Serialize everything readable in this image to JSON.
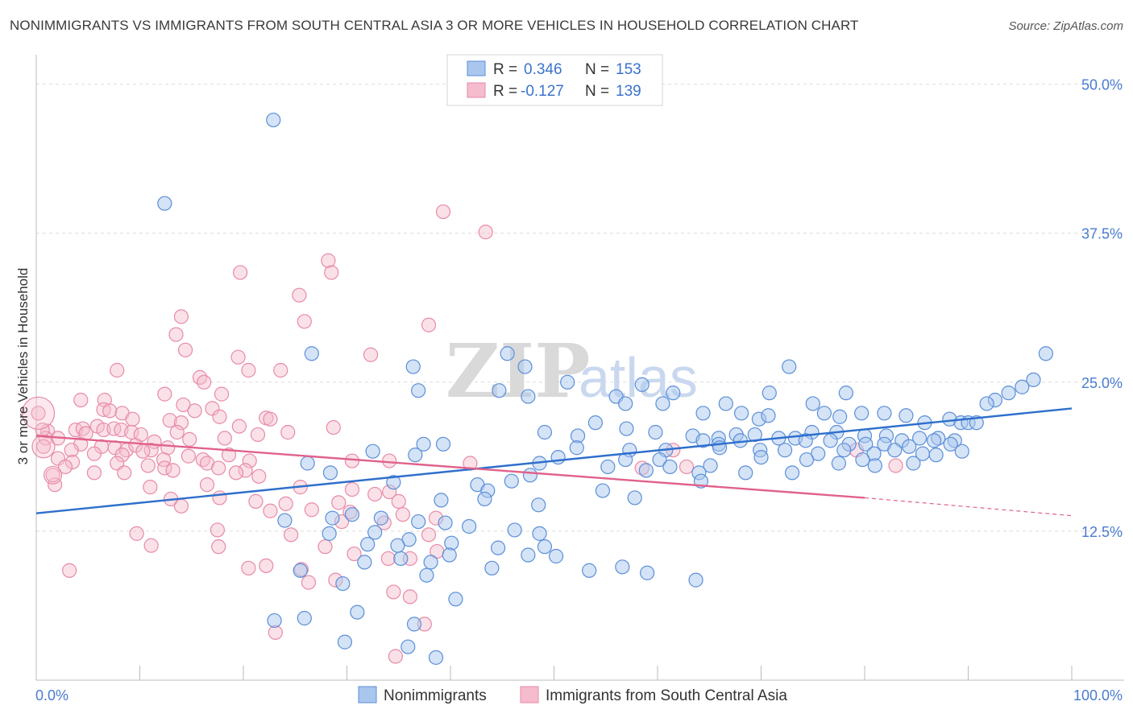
{
  "title": "NONIMMIGRANTS VS IMMIGRANTS FROM SOUTH CENTRAL ASIA 3 OR MORE VEHICLES IN HOUSEHOLD CORRELATION CHART",
  "source": "Source: ZipAtlas.com",
  "watermark": {
    "zip": "ZIP",
    "atlas": "atlas"
  },
  "legend_top": {
    "row1": {
      "r_label": "R =",
      "r_value": "0.346",
      "n_label": "N =",
      "n_value": "153"
    },
    "row2": {
      "r_label": "R =",
      "r_value": "-0.127",
      "n_label": "N =",
      "n_value": "139"
    }
  },
  "legend_bottom": {
    "s1": "Nonimmigrants",
    "s2": "Immigrants from South Central Asia"
  },
  "colors": {
    "blue": "#5b8fd8",
    "blue_fill": "#a9c7ee",
    "blue_line": "#2e6fcc",
    "pink": "#e88aa8",
    "pink_fill": "#f5bccd",
    "pink_line": "#e0628c",
    "tick_text": "#4a7bd0",
    "grid": "#dcdcdc"
  },
  "chart_data": {
    "type": "scatter",
    "title": "NONIMMIGRANTS VS IMMIGRANTS FROM SOUTH CENTRAL ASIA 3 OR MORE VEHICLES IN HOUSEHOLD CORRELATION CHART",
    "xlabel": "",
    "ylabel": "3 or more Vehicles in Household",
    "xlim": [
      0,
      100
    ],
    "ylim": [
      0,
      52
    ],
    "x_tick_labels": [
      "0.0%",
      "100.0%"
    ],
    "y_ticks": [
      12.5,
      25.0,
      37.5,
      50.0
    ],
    "y_tick_labels": [
      "12.5%",
      "25.0%",
      "37.5%",
      "50.0%"
    ],
    "grid": true,
    "legend_position": "top-center",
    "series": [
      {
        "name": "Nonimmigrants",
        "color": "#5b8fd8",
        "r": 0.346,
        "n": 153,
        "trend": [
          [
            0,
            14.0
          ],
          [
            100,
            22.8
          ]
        ],
        "points": [
          [
            22.9,
            47
          ],
          [
            12.4,
            40
          ],
          [
            26.6,
            27.4
          ],
          [
            45.5,
            27.4
          ],
          [
            36.4,
            26.3
          ],
          [
            47.2,
            26.3
          ],
          [
            72.7,
            26.3
          ],
          [
            36.9,
            24.3
          ],
          [
            44.7,
            24.3
          ],
          [
            47.5,
            23.8
          ],
          [
            51.3,
            25.0
          ],
          [
            58.5,
            24.8
          ],
          [
            61.5,
            24.1
          ],
          [
            70.8,
            24.1
          ],
          [
            78.2,
            24.1
          ],
          [
            97.5,
            27.4
          ],
          [
            96.3,
            25.2
          ],
          [
            95.2,
            24.6
          ],
          [
            93.9,
            24.1
          ],
          [
            92.6,
            23.5
          ],
          [
            91.8,
            23.2
          ],
          [
            56.0,
            23.8
          ],
          [
            56.9,
            23.2
          ],
          [
            60.5,
            23.2
          ],
          [
            64.4,
            22.4
          ],
          [
            66.6,
            23.2
          ],
          [
            68.1,
            22.4
          ],
          [
            69.8,
            21.9
          ],
          [
            70.7,
            22.2
          ],
          [
            75.0,
            23.2
          ],
          [
            76.1,
            22.4
          ],
          [
            77.6,
            22.1
          ],
          [
            79.7,
            22.4
          ],
          [
            81.9,
            22.4
          ],
          [
            84.0,
            22.2
          ],
          [
            85.8,
            21.6
          ],
          [
            88.2,
            21.9
          ],
          [
            89.3,
            21.6
          ],
          [
            90.0,
            21.6
          ],
          [
            90.8,
            21.6
          ],
          [
            54.0,
            21.6
          ],
          [
            57.0,
            21.1
          ],
          [
            59.8,
            20.8
          ],
          [
            63.4,
            20.5
          ],
          [
            65.9,
            20.3
          ],
          [
            67.6,
            20.6
          ],
          [
            69.4,
            20.6
          ],
          [
            73.3,
            20.3
          ],
          [
            74.9,
            20.8
          ],
          [
            77.3,
            20.8
          ],
          [
            80.0,
            20.5
          ],
          [
            82.1,
            20.5
          ],
          [
            85.3,
            20.3
          ],
          [
            87.1,
            20.3
          ],
          [
            88.7,
            20.1
          ],
          [
            49.1,
            20.8
          ],
          [
            52.3,
            20.5
          ],
          [
            37.4,
            19.8
          ],
          [
            39.3,
            19.8
          ],
          [
            64.4,
            20.1
          ],
          [
            65.9,
            19.8
          ],
          [
            68.0,
            20.1
          ],
          [
            71.7,
            20.3
          ],
          [
            74.3,
            20.1
          ],
          [
            76.7,
            20.1
          ],
          [
            78.5,
            19.8
          ],
          [
            80.1,
            19.8
          ],
          [
            81.9,
            19.8
          ],
          [
            83.6,
            20.1
          ],
          [
            86.7,
            20.1
          ],
          [
            88.3,
            19.8
          ],
          [
            52.2,
            19.5
          ],
          [
            57.3,
            19.3
          ],
          [
            60.8,
            19.3
          ],
          [
            66.0,
            19.5
          ],
          [
            69.9,
            19.3
          ],
          [
            72.3,
            19.3
          ],
          [
            75.5,
            19.0
          ],
          [
            78.0,
            19.3
          ],
          [
            80.9,
            19.0
          ],
          [
            82.9,
            19.3
          ],
          [
            84.3,
            19.6
          ],
          [
            85.6,
            19.0
          ],
          [
            86.9,
            18.9
          ],
          [
            89.4,
            19.2
          ],
          [
            32.5,
            19.2
          ],
          [
            36.6,
            18.9
          ],
          [
            50.4,
            18.7
          ],
          [
            56.9,
            18.5
          ],
          [
            60.2,
            18.5
          ],
          [
            65.1,
            18.0
          ],
          [
            70.0,
            18.7
          ],
          [
            74.4,
            18.5
          ],
          [
            77.5,
            18.2
          ],
          [
            79.8,
            18.5
          ],
          [
            81.0,
            18.0
          ],
          [
            84.7,
            18.2
          ],
          [
            48.6,
            18.2
          ],
          [
            55.2,
            17.9
          ],
          [
            58.9,
            17.6
          ],
          [
            61.2,
            17.9
          ],
          [
            64.0,
            17.4
          ],
          [
            68.5,
            17.4
          ],
          [
            73.0,
            17.4
          ],
          [
            26.2,
            18.2
          ],
          [
            28.4,
            17.4
          ],
          [
            47.7,
            17.2
          ],
          [
            45.9,
            16.7
          ],
          [
            34.5,
            16.6
          ],
          [
            64.2,
            16.7
          ],
          [
            42.6,
            16.4
          ],
          [
            43.6,
            15.9
          ],
          [
            54.7,
            15.9
          ],
          [
            43.3,
            15.2
          ],
          [
            48.5,
            14.7
          ],
          [
            57.8,
            15.3
          ],
          [
            39.1,
            15.1
          ],
          [
            30.5,
            13.9
          ],
          [
            33.3,
            13.6
          ],
          [
            36.9,
            13.3
          ],
          [
            39.5,
            13.2
          ],
          [
            41.8,
            12.9
          ],
          [
            46.2,
            12.6
          ],
          [
            48.6,
            12.3
          ],
          [
            24.0,
            13.4
          ],
          [
            28.6,
            13.6
          ],
          [
            32.7,
            12.4
          ],
          [
            36.0,
            11.8
          ],
          [
            40.1,
            11.5
          ],
          [
            44.6,
            11.1
          ],
          [
            49.1,
            11.2
          ],
          [
            35.2,
            10.2
          ],
          [
            38.1,
            9.9
          ],
          [
            39.9,
            10.5
          ],
          [
            44.0,
            9.4
          ],
          [
            50.2,
            10.4
          ],
          [
            53.4,
            9.2
          ],
          [
            56.6,
            9.5
          ],
          [
            59.0,
            9.0
          ],
          [
            31.7,
            9.9
          ],
          [
            34.9,
            11.3
          ],
          [
            28.3,
            12.3
          ],
          [
            32.0,
            11.4
          ],
          [
            47.5,
            10.5
          ],
          [
            37.7,
            8.8
          ],
          [
            25.5,
            9.2
          ],
          [
            29.6,
            8.1
          ],
          [
            63.7,
            8.4
          ],
          [
            40.5,
            6.8
          ],
          [
            23.0,
            5.0
          ],
          [
            31.0,
            5.7
          ],
          [
            25.9,
            5.2
          ],
          [
            35.9,
            2.8
          ],
          [
            36.5,
            4.7
          ],
          [
            38.6,
            1.9
          ],
          [
            29.8,
            3.2
          ]
        ]
      },
      {
        "name": "Immigrants from South Central Asia",
        "color": "#e88aa8",
        "r": -0.127,
        "n": 139,
        "trend": [
          [
            0,
            20.5
          ],
          [
            80,
            15.3
          ]
        ],
        "trend_dashed": [
          [
            80,
            15.3
          ],
          [
            100,
            13.8
          ]
        ],
        "points": [
          [
            39.3,
            39.3
          ],
          [
            43.4,
            37.6
          ],
          [
            28.2,
            35.2
          ],
          [
            28.5,
            34.2
          ],
          [
            19.7,
            34.2
          ],
          [
            25.4,
            32.3
          ],
          [
            14.0,
            30.5
          ],
          [
            25.9,
            30.1
          ],
          [
            37.9,
            29.8
          ],
          [
            13.5,
            29.0
          ],
          [
            14.4,
            27.7
          ],
          [
            19.5,
            27.1
          ],
          [
            32.3,
            27.3
          ],
          [
            7.8,
            26.0
          ],
          [
            20.5,
            26.0
          ],
          [
            23.6,
            26.0
          ],
          [
            15.8,
            25.4
          ],
          [
            16.2,
            25.0
          ],
          [
            12.4,
            24.0
          ],
          [
            17.9,
            24.0
          ],
          [
            4.3,
            23.5
          ],
          [
            6.6,
            23.5
          ],
          [
            14.2,
            23.1
          ],
          [
            17.0,
            22.8
          ],
          [
            6.5,
            22.7
          ],
          [
            7.1,
            22.6
          ],
          [
            8.3,
            22.4
          ],
          [
            15.3,
            22.6
          ],
          [
            17.7,
            22.1
          ],
          [
            22.2,
            22.0
          ],
          [
            22.6,
            21.9
          ],
          [
            12.9,
            21.8
          ],
          [
            14.0,
            21.6
          ],
          [
            19.6,
            21.3
          ],
          [
            28.7,
            21.2
          ],
          [
            1.1,
            20.9
          ],
          [
            3.8,
            21.0
          ],
          [
            4.5,
            21.1
          ],
          [
            5.9,
            21.3
          ],
          [
            6.5,
            21.0
          ],
          [
            7.5,
            21.1
          ],
          [
            8.2,
            21.0
          ],
          [
            9.2,
            20.8
          ],
          [
            10.1,
            20.6
          ],
          [
            13.6,
            20.8
          ],
          [
            11.4,
            20.0
          ],
          [
            14.8,
            20.2
          ],
          [
            18.2,
            20.3
          ],
          [
            21.4,
            20.6
          ],
          [
            24.3,
            20.8
          ],
          [
            0.9,
            20.3
          ],
          [
            2.1,
            20.3
          ],
          [
            4.3,
            19.8
          ],
          [
            6.3,
            19.6
          ],
          [
            7.6,
            19.5
          ],
          [
            8.7,
            19.3
          ],
          [
            9.6,
            19.7
          ],
          [
            11.1,
            19.3
          ],
          [
            12.7,
            19.5
          ],
          [
            3.4,
            19.3
          ],
          [
            5.6,
            19.0
          ],
          [
            8.3,
            18.9
          ],
          [
            10.3,
            19.2
          ],
          [
            12.3,
            18.5
          ],
          [
            14.7,
            18.8
          ],
          [
            16.1,
            18.5
          ],
          [
            18.6,
            18.9
          ],
          [
            20.6,
            18.4
          ],
          [
            30.5,
            18.4
          ],
          [
            34.1,
            18.4
          ],
          [
            41.9,
            18.2
          ],
          [
            2.1,
            18.6
          ],
          [
            3.5,
            18.3
          ],
          [
            7.8,
            18.2
          ],
          [
            10.8,
            18.0
          ],
          [
            12.4,
            17.8
          ],
          [
            16.5,
            18.2
          ],
          [
            17.6,
            17.8
          ],
          [
            20.2,
            17.6
          ],
          [
            2.8,
            17.9
          ],
          [
            5.6,
            17.4
          ],
          [
            8.5,
            17.4
          ],
          [
            13.2,
            17.6
          ],
          [
            19.3,
            17.4
          ],
          [
            21.5,
            17.1
          ],
          [
            1.8,
            16.4
          ],
          [
            11.0,
            16.2
          ],
          [
            16.5,
            16.4
          ],
          [
            25.5,
            16.2
          ],
          [
            30.5,
            16.0
          ],
          [
            32.7,
            15.6
          ],
          [
            34.1,
            15.8
          ],
          [
            13.0,
            15.2
          ],
          [
            17.7,
            15.3
          ],
          [
            21.2,
            15.0
          ],
          [
            24.1,
            14.8
          ],
          [
            29.2,
            14.9
          ],
          [
            35.0,
            15.0
          ],
          [
            14.0,
            14.6
          ],
          [
            22.6,
            14.2
          ],
          [
            26.6,
            14.3
          ],
          [
            30.3,
            14.1
          ],
          [
            35.4,
            13.9
          ],
          [
            38.6,
            13.6
          ],
          [
            29.5,
            13.3
          ],
          [
            33.6,
            13.2
          ],
          [
            17.5,
            12.6
          ],
          [
            24.6,
            12.2
          ],
          [
            37.9,
            12.2
          ],
          [
            9.7,
            12.3
          ],
          [
            11.1,
            11.3
          ],
          [
            27.9,
            11.2
          ],
          [
            30.7,
            10.6
          ],
          [
            34.0,
            10.2
          ],
          [
            36.1,
            10.2
          ],
          [
            38.7,
            10.8
          ],
          [
            17.6,
            11.2
          ],
          [
            22.2,
            9.6
          ],
          [
            25.6,
            9.3
          ],
          [
            20.5,
            9.4
          ],
          [
            26.3,
            8.2
          ],
          [
            28.9,
            8.4
          ],
          [
            34.5,
            7.4
          ],
          [
            36.1,
            7.0
          ],
          [
            3.2,
            9.2
          ],
          [
            37.5,
            4.7
          ],
          [
            23.1,
            4.0
          ],
          [
            34.7,
            2.0
          ],
          [
            61.5,
            19.3
          ],
          [
            79.2,
            19.3
          ],
          [
            62.8,
            17.9
          ],
          [
            83.0,
            18.0
          ],
          [
            58.5,
            17.8
          ],
          [
            0.2,
            22.4
          ],
          [
            0.6,
            21.0
          ],
          [
            0.7,
            19.6
          ],
          [
            1.6,
            17.2
          ],
          [
            4.8,
            20.7
          ],
          [
            9.3,
            21.9
          ]
        ]
      }
    ]
  }
}
